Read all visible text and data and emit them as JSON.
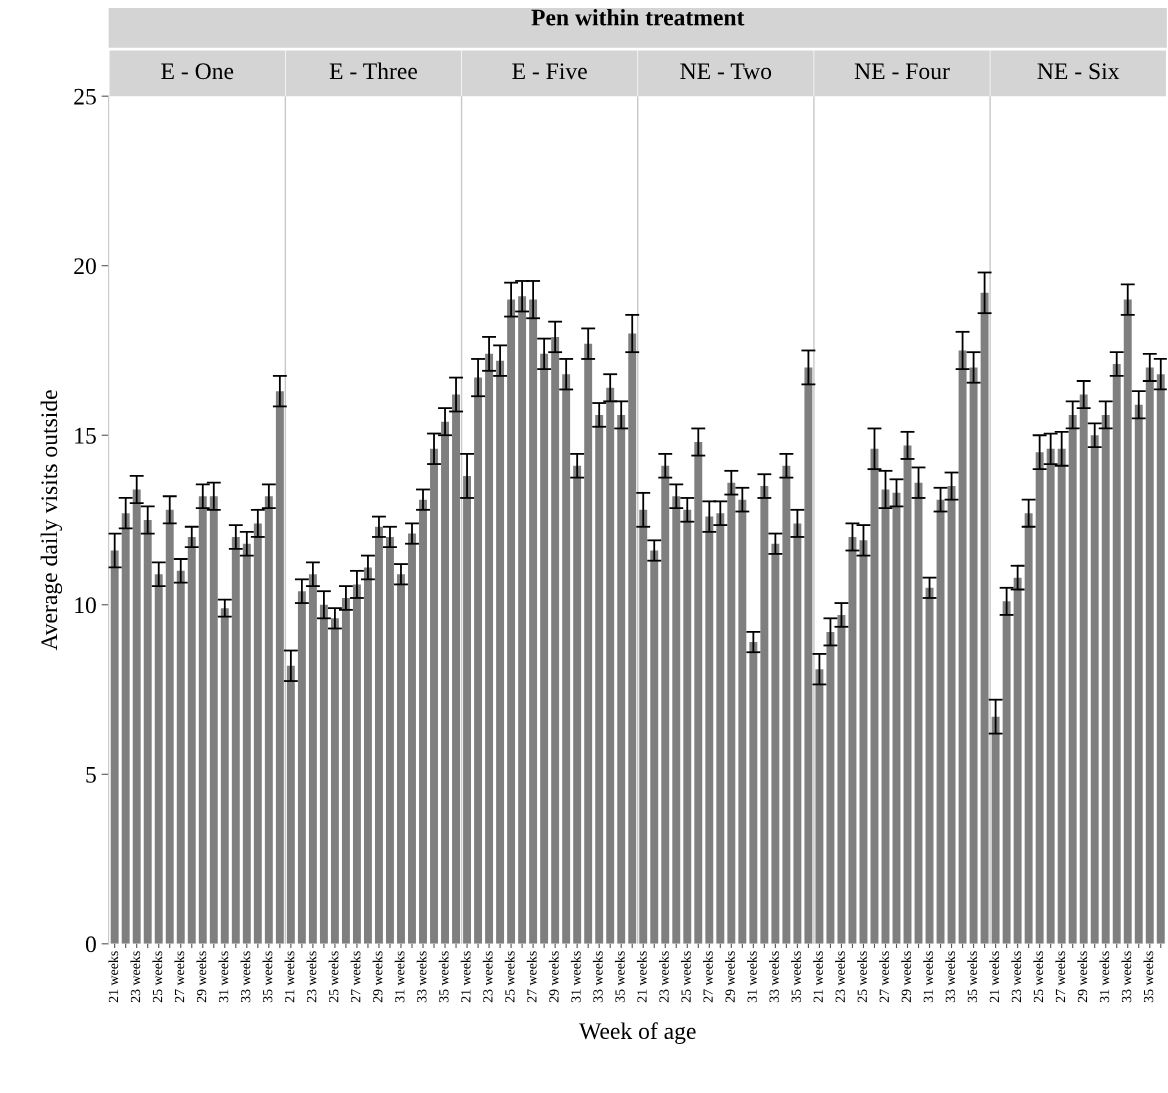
{
  "chart_data": {
    "type": "bar",
    "title": "Pen within treatment",
    "xlabel": "Week of age",
    "ylabel": "Average daily visits outside",
    "color": "#7f7f7f",
    "annotations": [
      "E - One",
      "E - Three",
      "E - Five",
      "NE - Two",
      "NE - Four",
      "NE - Six"
    ],
    "categories": [
      "21 weeks",
      null,
      "23 weeks",
      null,
      "25 weeks",
      null,
      "27 weeks",
      null,
      "29 weeks",
      null,
      "31 weeks",
      null,
      "33 weeks",
      null,
      "35 weeks",
      null,
      "21 weeks",
      null,
      "23 weeks",
      null,
      "25 weeks",
      null,
      "27 weeks",
      null,
      "29 weeks",
      null,
      "31 weeks",
      null,
      "33 weeks",
      null,
      "35 weeks",
      null,
      "21 weeks",
      null,
      "23 weeks",
      null,
      "25 weeks",
      null,
      "27 weeks",
      null,
      "29 weeks",
      null,
      "31 weeks",
      null,
      "33 weeks",
      null,
      "35 weeks",
      null,
      "21 weeks",
      null,
      "23 weeks",
      null,
      "25 weeks",
      null,
      "27 weeks",
      null,
      "29 weeks",
      null,
      "31 weeks",
      null,
      "33 weeks",
      null,
      "35 weeks",
      null,
      "21 weeks",
      null,
      "23 weeks",
      null,
      "25 weeks",
      null,
      "27 weeks",
      null,
      "29 weeks",
      null,
      "31 weeks",
      null,
      "33 weeks",
      null,
      "35 weeks",
      null,
      "21 weeks",
      null,
      "23 weeks",
      null,
      "25 weeks",
      null,
      "27 weeks",
      null,
      "29 weeks",
      null,
      "31 weeks",
      null,
      "33 weeks",
      null,
      "35 weeks",
      null
    ],
    "values": [
      11.6,
      12.7,
      13.4,
      12.5,
      10.9,
      12.8,
      11.0,
      12.0,
      13.2,
      13.2,
      9.9,
      12.0,
      11.8,
      12.4,
      13.2,
      16.3,
      8.2,
      10.4,
      10.9,
      10.0,
      9.6,
      10.2,
      10.6,
      11.1,
      12.3,
      12.0,
      10.9,
      12.1,
      13.1,
      14.6,
      15.4,
      16.2,
      13.8,
      16.7,
      17.4,
      17.2,
      19.0,
      19.1,
      19.0,
      17.4,
      17.9,
      16.8,
      14.1,
      17.7,
      15.6,
      16.4,
      15.6,
      18.0,
      12.8,
      11.6,
      14.1,
      13.2,
      12.8,
      14.8,
      12.6,
      12.7,
      13.6,
      13.1,
      8.9,
      13.5,
      11.8,
      14.1,
      12.4,
      17.0,
      8.1,
      9.2,
      9.7,
      12.0,
      11.9,
      14.6,
      13.4,
      13.3,
      14.7,
      13.6,
      10.5,
      13.1,
      13.5,
      17.5,
      17.0,
      19.2,
      6.7,
      10.1,
      10.8,
      12.7,
      14.5,
      14.6,
      14.6,
      15.6,
      16.2,
      15.0,
      15.6,
      17.1,
      19.0,
      15.9,
      17.0,
      16.8
    ],
    "errors": [
      0.5,
      0.45,
      0.4,
      0.4,
      0.35,
      0.4,
      0.35,
      0.3,
      0.35,
      0.4,
      0.25,
      0.35,
      0.35,
      0.4,
      0.35,
      0.45,
      0.45,
      0.35,
      0.35,
      0.4,
      0.3,
      0.35,
      0.4,
      0.35,
      0.3,
      0.3,
      0.3,
      0.3,
      0.3,
      0.45,
      0.4,
      0.5,
      0.65,
      0.55,
      0.5,
      0.45,
      0.5,
      0.45,
      0.55,
      0.45,
      0.45,
      0.45,
      0.35,
      0.45,
      0.35,
      0.4,
      0.4,
      0.55,
      0.5,
      0.3,
      0.35,
      0.35,
      0.35,
      0.4,
      0.45,
      0.35,
      0.35,
      0.35,
      0.3,
      0.35,
      0.3,
      0.35,
      0.4,
      0.5,
      0.45,
      0.4,
      0.35,
      0.4,
      0.45,
      0.6,
      0.55,
      0.4,
      0.4,
      0.45,
      0.3,
      0.35,
      0.4,
      0.55,
      0.45,
      0.6,
      0.5,
      0.4,
      0.35,
      0.4,
      0.5,
      0.45,
      0.5,
      0.4,
      0.4,
      0.35,
      0.4,
      0.35,
      0.45,
      0.4,
      0.4,
      0.45
    ],
    "ylim": [
      0,
      25
    ],
    "yticks": [
      0,
      5,
      10,
      15,
      20,
      25
    ]
  }
}
